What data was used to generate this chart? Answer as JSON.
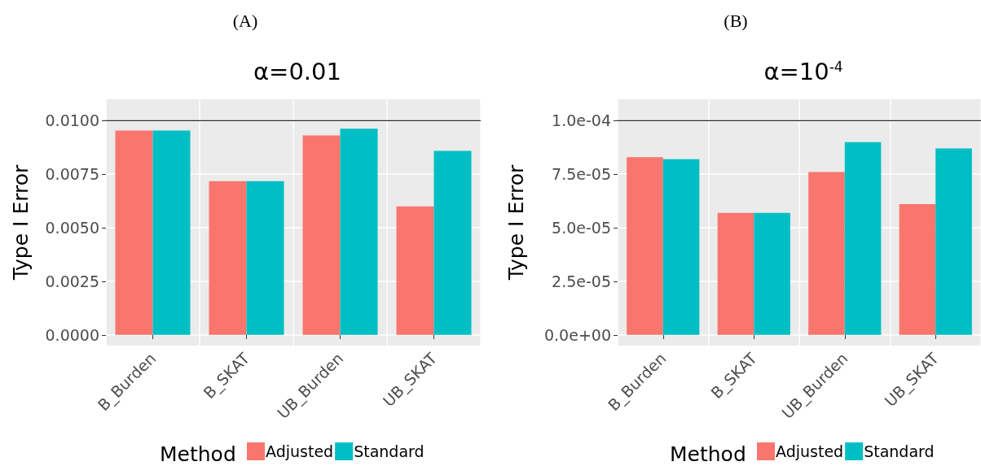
{
  "chart_data": [
    {
      "type": "bar",
      "title": "α=0.01",
      "annotations": [
        "(A)"
      ],
      "ylabel": "Type I Error",
      "legend_title": "Method",
      "legend": "bottom",
      "grid": true,
      "categories": [
        "B_Burden",
        "B_SKAT",
        "UB_Burden",
        "UB_SKAT"
      ],
      "series": [
        {
          "name": "Adjusted",
          "color": "#f8766d",
          "values": [
            0.00954,
            0.00718,
            0.00931,
            0.006
          ]
        },
        {
          "name": "Standard",
          "color": "#00bfc4",
          "values": [
            0.00954,
            0.00718,
            0.00962,
            0.00859
          ]
        }
      ],
      "ylim": [
        -0.0005,
        0.011
      ],
      "yticks": [
        {
          "value": 0,
          "label": "0.0000"
        },
        {
          "value": 0.0025,
          "label": "0.0025"
        },
        {
          "value": 0.005,
          "label": "0.0050"
        },
        {
          "value": 0.0075,
          "label": "0.0075"
        },
        {
          "value": 0.01,
          "label": "0.0100"
        }
      ],
      "ref_lines": [
        {
          "axis": "y",
          "value": 0.01,
          "label": null,
          "color": "#000000"
        }
      ]
    },
    {
      "type": "bar",
      "title": "α=10$^{-4}$",
      "annotations": [
        "(B)"
      ],
      "ylabel": "Type I Error",
      "legend_title": "Method",
      "legend": "bottom",
      "grid": true,
      "categories": [
        "B_Burden",
        "B_SKAT",
        "UB_Burden",
        "UB_SKAT"
      ],
      "series": [
        {
          "name": "Adjusted",
          "color": "#f8766d",
          "values": [
            8.3e-05,
            5.7e-05,
            7.6e-05,
            6.1e-05
          ]
        },
        {
          "name": "Standard",
          "color": "#00bfc4",
          "values": [
            8.2e-05,
            5.7e-05,
            9e-05,
            8.7e-05
          ]
        }
      ],
      "ylim": [
        -5e-06,
        0.00011
      ],
      "yticks": [
        {
          "value": 0,
          "label": "0.0e+00"
        },
        {
          "value": 2.5e-05,
          "label": "2.5e-05"
        },
        {
          "value": 5e-05,
          "label": "5.0e-05"
        },
        {
          "value": 7.5e-05,
          "label": "7.5e-05"
        },
        {
          "value": 0.0001,
          "label": "1.0e-04"
        }
      ],
      "ref_lines": [
        {
          "axis": "y",
          "value": 0.0001,
          "label": null,
          "color": "#000000"
        }
      ]
    }
  ]
}
